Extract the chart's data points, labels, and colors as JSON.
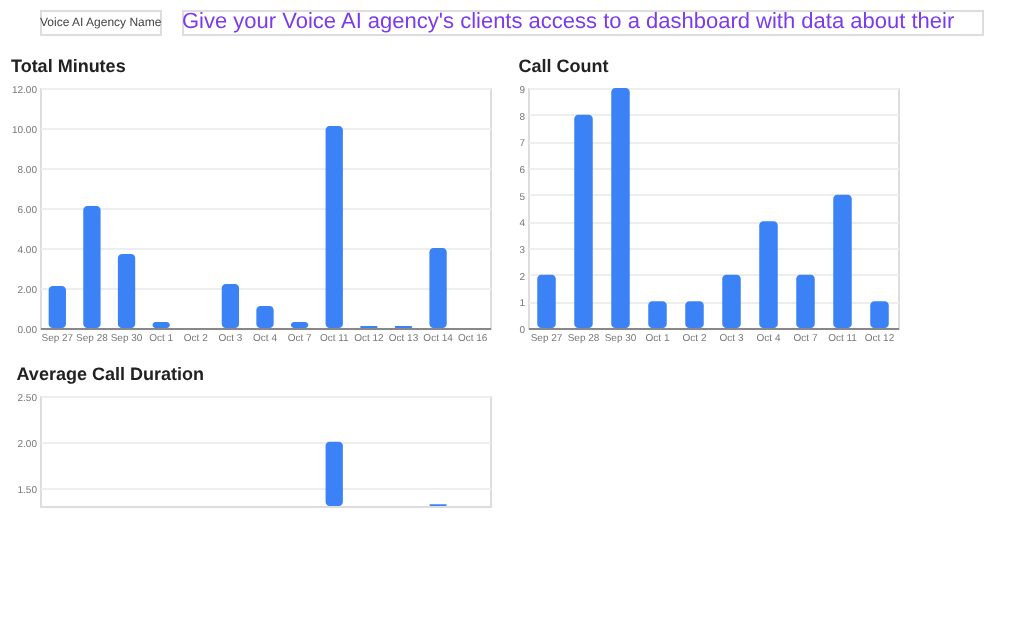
{
  "chart_data": [
    {
      "type": "bar",
      "title": "Total Minutes",
      "annotations": [
        "Voice AI Agency Name",
        "Give your Voice AI agency's clients access to a dashboard with data about their"
      ],
      "categories": [
        "Sep 27",
        "Sep 28",
        "Sep 30",
        "Oct 1",
        "Oct 2",
        "Oct 3",
        "Oct 4",
        "Oct 7",
        "Oct 11",
        "Oct 12",
        "Oct 13",
        "Oct 14",
        "Oct 16"
      ],
      "values": [
        2.1,
        6.1,
        3.7,
        0.3,
        0,
        2.2,
        1.1,
        0.3,
        10.1,
        0.1,
        0.1,
        4.0,
        0
      ],
      "color": "#3b82f6",
      "ylim": [
        0,
        12
      ],
      "yticks": [
        {
          "value": 0,
          "label": "0.00"
        },
        {
          "value": 2,
          "label": "2.00"
        },
        {
          "value": 4,
          "label": "4.00"
        },
        {
          "value": 6,
          "label": "6.00"
        },
        {
          "value": 8,
          "label": "8.00"
        },
        {
          "value": 10,
          "label": "10.00"
        },
        {
          "value": 12,
          "label": "12.00"
        }
      ],
      "grid": "y"
    },
    {
      "type": "bar",
      "title": "Call Count",
      "categories": [
        "Sep 27",
        "Sep 28",
        "Sep 30",
        "Oct 1",
        "Oct 2",
        "Oct 3",
        "Oct 4",
        "Oct 7",
        "Oct 11",
        "Oct 12"
      ],
      "values": [
        2,
        8,
        9,
        1,
        1,
        2,
        4,
        2,
        5,
        1
      ],
      "color": "#3b82f6",
      "ylim": [
        0,
        9
      ],
      "yticks": [
        0,
        1,
        2,
        3,
        4,
        5,
        6,
        7,
        8,
        9
      ],
      "grid": "y"
    },
    {
      "type": "bar",
      "title": "Average Call Duration",
      "categories": [
        null,
        null,
        null,
        null,
        null,
        null,
        null,
        null,
        null,
        null,
        null,
        null,
        null
      ],
      "values": [
        null,
        null,
        null,
        null,
        null,
        null,
        null,
        null,
        2.0,
        null,
        null,
        1.32,
        null
      ],
      "color": "#3b82f6",
      "ylim": [
        1.3,
        2.5
      ],
      "yticks": [
        {
          "value": 1.5,
          "label": "1.50"
        },
        {
          "value": 2.0,
          "label": "2.00"
        },
        {
          "value": 2.5,
          "label": "2.50"
        }
      ],
      "grid": "y",
      "tick_labels": "y"
    }
  ]
}
